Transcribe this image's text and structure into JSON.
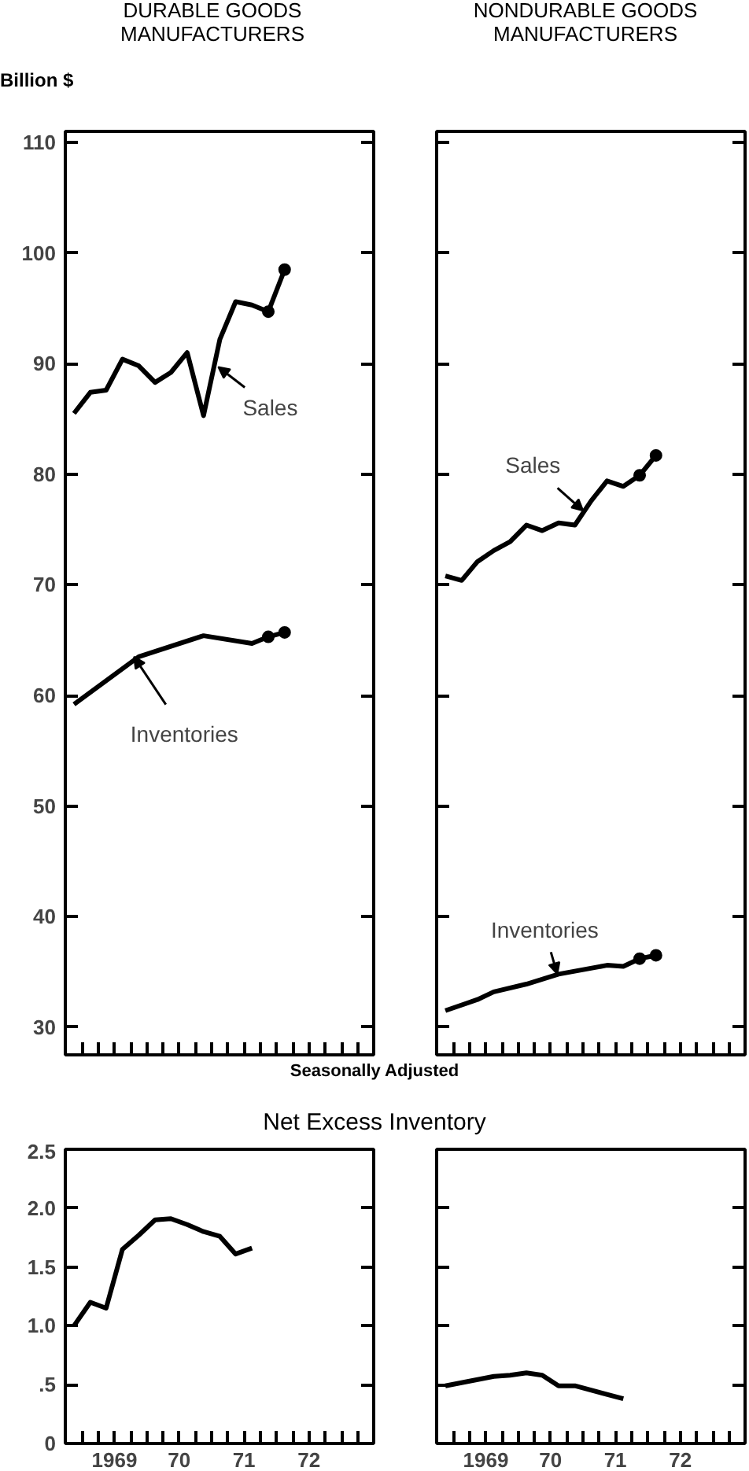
{
  "chart_data": [
    {
      "type": "line",
      "title": "DURABLE GOODS\nMANUFACTURERS",
      "ylabel": "Billion $",
      "xlim": [
        "1968-09-27",
        "1973-07-01"
      ],
      "ylim": [
        27.5,
        111
      ],
      "tick_labels": "y",
      "xticks": [
        "1969-01-01",
        "1969-04-01",
        "1969-07-01",
        "1969-10-01",
        "1970-01-01",
        "1970-04-01",
        "1970-07-01",
        "1970-10-01",
        "1971-01-01",
        "1971-04-01",
        "1971-07-01",
        "1971-10-01",
        "1972-01-01",
        "1972-04-01",
        "1972-07-01",
        "1972-10-01",
        "1973-01-01",
        "1973-04-01"
      ],
      "yticks": [
        30,
        40,
        50,
        60,
        70,
        80,
        90,
        100,
        110
      ],
      "series": [
        {
          "color": "#000000",
          "x": [
            "1968-11-15",
            "1969-02-15",
            "1969-05-15",
            "1969-08-15",
            "1969-11-15",
            "1970-02-15",
            "1970-05-15",
            "1970-08-15",
            "1970-11-15",
            "1971-02-15",
            "1971-05-15",
            "1971-08-15",
            "1971-11-15"
          ],
          "values": [
            85.5,
            87.4,
            87.6,
            90.4,
            89.8,
            88.3,
            89.2,
            91.0,
            85.3,
            92.2,
            95.6,
            95.3,
            94.7
          ]
        },
        {
          "color": "#000000",
          "marker": "circle",
          "x": [
            "1971-11-15",
            "1972-02-15"
          ],
          "values": [
            94.7,
            98.5
          ]
        },
        {
          "color": "#000000",
          "x": [
            "1968-11-15",
            "1969-11-15",
            "1970-11-15",
            "1971-08-15",
            "1971-11-15"
          ],
          "values": [
            59.2,
            63.5,
            65.4,
            64.7,
            65.3
          ]
        },
        {
          "color": "#000000",
          "marker": "circle",
          "x": [
            "1971-11-15",
            "1972-02-15"
          ],
          "values": [
            65.3,
            65.7
          ]
        }
      ],
      "annotations": [
        {
          "text": "Sales",
          "x": "1971-02-06",
          "y": 89.7
        },
        {
          "text": "Inventories",
          "x": "1969-10-19",
          "y": 63.5
        },
        "Seasonally Adjusted"
      ]
    },
    {
      "type": "line",
      "title": "NONDURABLE GOODS\nMANUFACTURERS",
      "xlim": [
        "1968-09-27",
        "1973-07-01"
      ],
      "ylim": [
        27.5,
        111
      ],
      "tick_labels": false,
      "xticks": [
        "1969-01-01",
        "1969-04-01",
        "1969-07-01",
        "1969-10-01",
        "1970-01-01",
        "1970-04-01",
        "1970-07-01",
        "1970-10-01",
        "1971-01-01",
        "1971-04-01",
        "1971-07-01",
        "1971-10-01",
        "1972-01-01",
        "1972-04-01",
        "1972-07-01",
        "1972-10-01",
        "1973-01-01",
        "1973-04-01"
      ],
      "yticks": [
        30,
        40,
        50,
        60,
        70,
        80,
        90,
        100,
        110
      ],
      "series": [
        {
          "color": "#000000",
          "x": [
            "1968-11-15",
            "1969-02-15",
            "1969-05-15",
            "1969-08-15",
            "1969-11-15",
            "1970-02-15",
            "1970-05-15",
            "1970-08-15",
            "1970-11-15",
            "1971-02-15",
            "1971-05-15",
            "1971-08-15",
            "1971-11-15"
          ],
          "values": [
            70.8,
            70.4,
            72.1,
            73.1,
            73.9,
            75.4,
            74.9,
            75.6,
            75.4,
            77.6,
            79.4,
            78.9,
            79.9
          ]
        },
        {
          "color": "#000000",
          "marker": "circle",
          "x": [
            "1971-11-15",
            "1972-02-15"
          ],
          "values": [
            79.9,
            81.7
          ]
        },
        {
          "color": "#000000",
          "x": [
            "1968-11-15",
            "1969-05-15",
            "1969-08-15",
            "1970-02-15",
            "1970-08-15",
            "1971-05-15",
            "1971-08-15",
            "1971-11-15"
          ],
          "values": [
            31.5,
            32.5,
            33.2,
            33.9,
            34.8,
            35.6,
            35.5,
            36.2
          ]
        },
        {
          "color": "#000000",
          "marker": "circle",
          "x": [
            "1971-11-15",
            "1972-02-15"
          ],
          "values": [
            36.2,
            36.5
          ]
        }
      ],
      "annotations": [
        {
          "text": "Sales",
          "x": "1971-01-01",
          "y": 76.7
        },
        {
          "text": "Inventories",
          "x": "1970-08-08",
          "y": 34.8
        }
      ]
    },
    {
      "type": "line",
      "title": "Net Excess Inventory",
      "xlim": [
        "1968-09-27",
        "1973-07-01"
      ],
      "ylim": [
        0,
        2.5
      ],
      "xticks": [
        {
          "value": "1969-01-01",
          "label": null
        },
        {
          "value": "1969-04-01",
          "label": null
        },
        {
          "value": "1969-07-01",
          "label": "1969"
        },
        {
          "value": "1969-10-01",
          "label": null
        },
        {
          "value": "1970-01-01",
          "label": null
        },
        {
          "value": "1970-04-01",
          "label": null
        },
        {
          "value": "1970-07-01",
          "label": "70"
        },
        {
          "value": "1970-10-01",
          "label": null
        },
        {
          "value": "1971-01-01",
          "label": null
        },
        {
          "value": "1971-04-01",
          "label": null
        },
        {
          "value": "1971-07-01",
          "label": "71"
        },
        {
          "value": "1971-10-01",
          "label": null
        },
        {
          "value": "1972-01-01",
          "label": null
        },
        {
          "value": "1972-04-01",
          "label": null
        },
        {
          "value": "1972-07-01",
          "label": "72"
        },
        {
          "value": "1972-10-01",
          "label": null
        },
        {
          "value": "1973-01-01",
          "label": null
        },
        {
          "value": "1973-04-01",
          "label": null
        }
      ],
      "yticks": [
        0,
        {
          "value": 0.5,
          "label": ".5"
        },
        {
          "value": 1,
          "label": "1.0"
        },
        1.5,
        {
          "value": 2,
          "label": "2.0"
        },
        2.5
      ],
      "series": [
        {
          "color": "#000000",
          "x": [
            "1968-11-15",
            "1969-02-15",
            "1969-05-15",
            "1969-08-15",
            "1969-11-15",
            "1970-02-15",
            "1970-05-15",
            "1970-08-15",
            "1970-11-15",
            "1971-02-15",
            "1971-05-15",
            "1971-08-15"
          ],
          "values": [
            1.0,
            1.2,
            1.15,
            1.65,
            1.77,
            1.9,
            1.91,
            1.86,
            1.8,
            1.76,
            1.61,
            1.66
          ]
        }
      ]
    },
    {
      "type": "line",
      "xlim": [
        "1968-09-27",
        "1973-07-01"
      ],
      "ylim": [
        0,
        2.5
      ],
      "tick_labels": "x",
      "xticks": [
        {
          "value": "1969-01-01",
          "label": null
        },
        {
          "value": "1969-04-01",
          "label": null
        },
        {
          "value": "1969-07-01",
          "label": "1969"
        },
        {
          "value": "1969-10-01",
          "label": null
        },
        {
          "value": "1970-01-01",
          "label": null
        },
        {
          "value": "1970-04-01",
          "label": null
        },
        {
          "value": "1970-07-01",
          "label": "70"
        },
        {
          "value": "1970-10-01",
          "label": null
        },
        {
          "value": "1971-01-01",
          "label": null
        },
        {
          "value": "1971-04-01",
          "label": null
        },
        {
          "value": "1971-07-01",
          "label": "71"
        },
        {
          "value": "1971-10-01",
          "label": null
        },
        {
          "value": "1972-01-01",
          "label": null
        },
        {
          "value": "1972-04-01",
          "label": null
        },
        {
          "value": "1972-07-01",
          "label": "72"
        },
        {
          "value": "1972-10-01",
          "label": null
        },
        {
          "value": "1973-01-01",
          "label": null
        },
        {
          "value": "1973-04-01",
          "label": null
        }
      ],
      "yticks": [
        0,
        0.5,
        1,
        1.5,
        2,
        2.5
      ],
      "series": [
        {
          "color": "#000000",
          "x": [
            "1968-11-15",
            "1969-08-15",
            "1969-11-15",
            "1970-02-15",
            "1970-05-15",
            "1970-08-15",
            "1970-11-15",
            "1971-08-15"
          ],
          "values": [
            0.49,
            0.57,
            0.58,
            0.6,
            0.58,
            0.49,
            0.49,
            0.38
          ]
        }
      ]
    }
  ]
}
